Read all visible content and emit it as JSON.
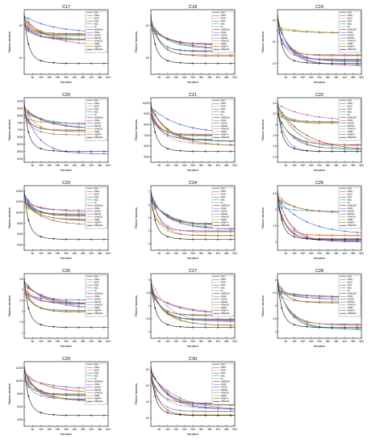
{
  "legend_labels": [
    "SSA",
    "GWO",
    "WOA",
    "PSO",
    "ABC",
    "FA",
    "QMESSA",
    "LSSA",
    "AGWO",
    "DRGW",
    "UPWOO",
    "NABC",
    "MSEFA",
    "MSESSA"
  ],
  "series_colors": [
    "#1f4fd8",
    "#e0453a",
    "#f0a62e",
    "#7e3fa0",
    "#4fb24a",
    "#3fc1e8",
    "#a01c2b",
    "#4878d0",
    "#c73b8e",
    "#2a9d8f",
    "#e377c2",
    "#b5bd00",
    "#8c564b",
    "#000000"
  ],
  "x_ticks": [
    50,
    100,
    150,
    200,
    250,
    300,
    350,
    400,
    450,
    500
  ],
  "common": {
    "xlabel": "Iteration",
    "ylabel": "Fitness function"
  },
  "chart_data": [
    {
      "title": "C17",
      "type": "line",
      "log_y": true,
      "y_tick_labels": [
        "10⁴",
        "10⁵"
      ]
    },
    {
      "title": "C18",
      "type": "line",
      "log_y": true,
      "y_tick_labels": [
        "10⁵",
        "10⁶"
      ]
    },
    {
      "title": "C19",
      "type": "line",
      "log_y": true,
      "y_tick_labels": [
        "10³",
        "10⁴",
        "10⁵"
      ]
    },
    {
      "title": "C20",
      "type": "line",
      "log_y": false,
      "y_tick_labels": [
        "5000",
        "5500",
        "6000",
        "6500",
        "7000",
        "7500",
        "8000",
        "8500",
        "9000"
      ]
    },
    {
      "title": "C21",
      "type": "line",
      "log_y": false,
      "y_tick_labels": [
        "5000",
        "6000",
        "7000",
        "8000",
        "9000",
        "10000"
      ]
    },
    {
      "title": "C22",
      "type": "line",
      "log_y": false,
      "y_tick_labels": [
        "2.4",
        "2.6",
        "2.8",
        "3",
        "3.2",
        "3.4"
      ]
    },
    {
      "title": "C23",
      "type": "line",
      "log_y": false,
      "y_tick_labels": [
        "4000",
        "6000",
        "8000",
        "10000",
        "12000",
        "14000"
      ]
    },
    {
      "title": "C24",
      "type": "line",
      "log_y": false,
      "y_tick_labels": [
        "3",
        "4",
        "5",
        "6",
        "7"
      ]
    },
    {
      "title": "C25",
      "type": "line",
      "log_y": false,
      "y_tick_labels": [
        "2",
        "2.5",
        "3",
        "3.5"
      ]
    },
    {
      "title": "C26",
      "type": "line",
      "log_y": false,
      "y_tick_labels": [
        "1",
        "1.5",
        "2",
        "2.5",
        "3",
        "3.5"
      ]
    },
    {
      "title": "C27",
      "type": "line",
      "log_y": false,
      "y_tick_labels": [
        "3",
        "3.5",
        "4",
        "4.5",
        "5"
      ]
    },
    {
      "title": "C28",
      "type": "line",
      "log_y": false,
      "y_tick_labels": [
        "4",
        "4.5",
        "5",
        "5.5",
        "6"
      ]
    },
    {
      "title": "C29",
      "type": "line",
      "log_y": false,
      "y_tick_labels": [
        "4000",
        "6000",
        "8000",
        "10000",
        "12000"
      ]
    },
    {
      "title": "C30",
      "type": "line",
      "log_y": true,
      "y_tick_labels": [
        "10⁶",
        "10⁷",
        "10⁸",
        "10⁹"
      ]
    }
  ]
}
